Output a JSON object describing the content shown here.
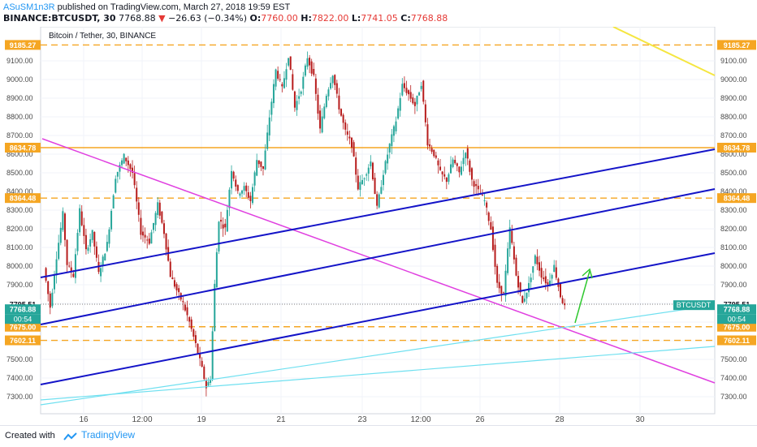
{
  "header": {
    "author": "ASuSM1n3R",
    "published_text": "published on TradingView.com, March 27, 2018 19:59 EST",
    "symbol": "BINANCE:BTCUSDT, 30",
    "last": "7768.88",
    "change": "−26.63 (−0.34%)",
    "o_label": "O:",
    "o_val": "7760.00",
    "h_label": "H:",
    "h_val": "7822.00",
    "l_label": "L:",
    "l_val": "7741.05",
    "c_label": "C:",
    "c_val": "7768.88"
  },
  "chart_title": "Bitcoin / Tether, 30, BINANCE",
  "footer": {
    "created_with": "Created with",
    "brand": "TradingView"
  },
  "colors": {
    "up": "#26a69a",
    "down": "#b71c1c",
    "orange": "#f5a623",
    "blue": "#1414c8",
    "magenta": "#e040e0",
    "cyan": "#6fe0f0",
    "yellow": "#f5e640",
    "green": "#2ec82e"
  },
  "chart_data": {
    "type": "candlestick",
    "ylim": [
      7230,
      9260
    ],
    "y_ticks": [
      "7300.00",
      "7400.00",
      "7500.00",
      "7600.00",
      "7700.00",
      "7800.00",
      "7900.00",
      "8000.00",
      "8100.00",
      "8200.00",
      "8300.00",
      "8400.00",
      "8500.00",
      "8600.00",
      "8700.00",
      "8800.00",
      "8900.00",
      "9000.00",
      "9100.00"
    ],
    "x_ticks": [
      "16",
      "12:00",
      "19",
      "21",
      "23",
      "12:00",
      "26",
      "28",
      "30"
    ],
    "horizontal_levels": [
      {
        "value": "9185.27",
        "style": "dashed",
        "color": "#f5a623"
      },
      {
        "value": "8634.78",
        "style": "solid",
        "color": "#f5a623"
      },
      {
        "value": "8364.48",
        "style": "dashed",
        "color": "#f5a623"
      },
      {
        "value": "7675.00",
        "style": "dashed",
        "color": "#f5a623"
      },
      {
        "value": "7602.11",
        "style": "dashed",
        "color": "#f5a623"
      }
    ],
    "price_line": {
      "value": "7795.51"
    },
    "last_price": {
      "value": "7768.88",
      "symbol": "BTCUSDT"
    },
    "countdown": "00:54",
    "price_path": [
      [
        0,
        7990
      ],
      [
        3,
        7780
      ],
      [
        6,
        8050
      ],
      [
        9,
        8280
      ],
      [
        11,
        8010
      ],
      [
        14,
        7950
      ],
      [
        17,
        8300
      ],
      [
        20,
        8080
      ],
      [
        23,
        8180
      ],
      [
        26,
        7960
      ],
      [
        30,
        8120
      ],
      [
        34,
        8480
      ],
      [
        38,
        8590
      ],
      [
        42,
        8500
      ],
      [
        46,
        8180
      ],
      [
        50,
        8130
      ],
      [
        54,
        8330
      ],
      [
        57,
        8180
      ],
      [
        60,
        7950
      ],
      [
        63,
        7870
      ],
      [
        66,
        7800
      ],
      [
        69,
        7700
      ],
      [
        72,
        7580
      ],
      [
        75,
        7450
      ],
      [
        77,
        7350
      ],
      [
        79,
        7400
      ],
      [
        81,
        7900
      ],
      [
        83,
        8250
      ],
      [
        86,
        8200
      ],
      [
        89,
        8520
      ],
      [
        92,
        8390
      ],
      [
        95,
        8420
      ],
      [
        98,
        8350
      ],
      [
        101,
        8570
      ],
      [
        104,
        8520
      ],
      [
        107,
        8800
      ],
      [
        110,
        9050
      ],
      [
        113,
        8950
      ],
      [
        116,
        9130
      ],
      [
        119,
        8850
      ],
      [
        122,
        8950
      ],
      [
        125,
        9120
      ],
      [
        128,
        9010
      ],
      [
        131,
        8730
      ],
      [
        134,
        8920
      ],
      [
        137,
        9030
      ],
      [
        140,
        8850
      ],
      [
        143,
        8720
      ],
      [
        146,
        8650
      ],
      [
        149,
        8420
      ],
      [
        152,
        8480
      ],
      [
        155,
        8560
      ],
      [
        158,
        8310
      ],
      [
        161,
        8500
      ],
      [
        164,
        8650
      ],
      [
        167,
        8780
      ],
      [
        170,
        8970
      ],
      [
        173,
        8920
      ],
      [
        176,
        8860
      ],
      [
        179,
        8980
      ],
      [
        182,
        8660
      ],
      [
        185,
        8600
      ],
      [
        188,
        8500
      ],
      [
        191,
        8460
      ],
      [
        194,
        8570
      ],
      [
        197,
        8500
      ],
      [
        200,
        8620
      ],
      [
        203,
        8460
      ],
      [
        206,
        8400
      ],
      [
        209,
        8350
      ],
      [
        212,
        8200
      ],
      [
        215,
        7900
      ],
      [
        218,
        7850
      ],
      [
        221,
        8200
      ],
      [
        224,
        7950
      ],
      [
        227,
        7800
      ],
      [
        230,
        7900
      ],
      [
        233,
        8050
      ],
      [
        236,
        7950
      ],
      [
        239,
        7900
      ],
      [
        242,
        8000
      ],
      [
        245,
        7840
      ],
      [
        247,
        7780
      ]
    ]
  }
}
